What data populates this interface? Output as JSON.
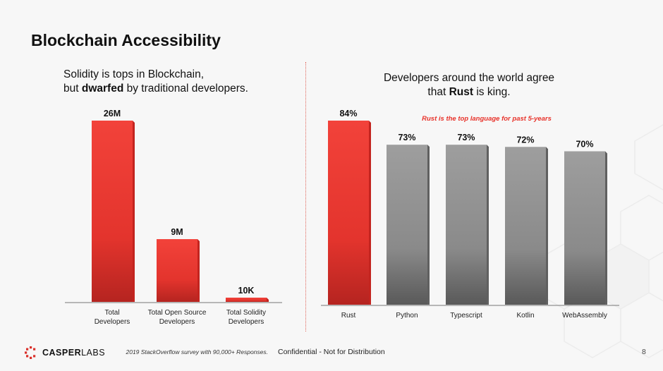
{
  "slide": {
    "title": "Blockchain Accessibility",
    "left_subtitle_line1": "Solidity is tops in Blockchain,",
    "left_subtitle_line2_pre": "but ",
    "left_subtitle_line2_bold": "dwarfed",
    "left_subtitle_line2_post": " by traditional developers.",
    "right_subtitle_line1": "Developers around the world agree",
    "right_subtitle_line2_pre": "that ",
    "right_subtitle_line2_bold": "Rust",
    "right_subtitle_line2_post": " is king.",
    "annotation": "Rust is the top language for past 5-years",
    "footer": {
      "logo_bold": "CASPER",
      "logo_light": "LABS",
      "source": "2019 StackOverflow survey with 90,000+ Responses.",
      "confidential": "Confidential - Not for Distribution",
      "page_number": "8"
    }
  },
  "colors": {
    "red": "#ee3b34",
    "red_dark": "#c3241f",
    "gray": "#9a9a9a",
    "gray_dark": "#606060",
    "annotation": "#e8322a"
  },
  "chart_data": [
    {
      "type": "bar",
      "categories": [
        [
          "Total",
          "Developers"
        ],
        [
          "Total Open Source",
          "Developers"
        ],
        [
          "Total Solidity",
          "Developers"
        ]
      ],
      "values": [
        26000000,
        9000000,
        10000
      ],
      "data_labels": [
        "26M",
        "9M",
        "10K"
      ],
      "colors": [
        "red",
        "red",
        "red"
      ],
      "ylim": [
        0,
        26000000
      ],
      "grid": false
    },
    {
      "type": "bar",
      "categories": [
        [
          "Rust"
        ],
        [
          "Python"
        ],
        [
          "Typescript"
        ],
        [
          "Kotlin"
        ],
        [
          "WebAssembly"
        ]
      ],
      "values": [
        84,
        73,
        73,
        72,
        70
      ],
      "data_labels": [
        "84%",
        "73%",
        "73%",
        "72%",
        "70%"
      ],
      "colors": [
        "red",
        "gray",
        "gray",
        "gray",
        "gray"
      ],
      "ylim": [
        0,
        84
      ],
      "grid": false
    }
  ]
}
